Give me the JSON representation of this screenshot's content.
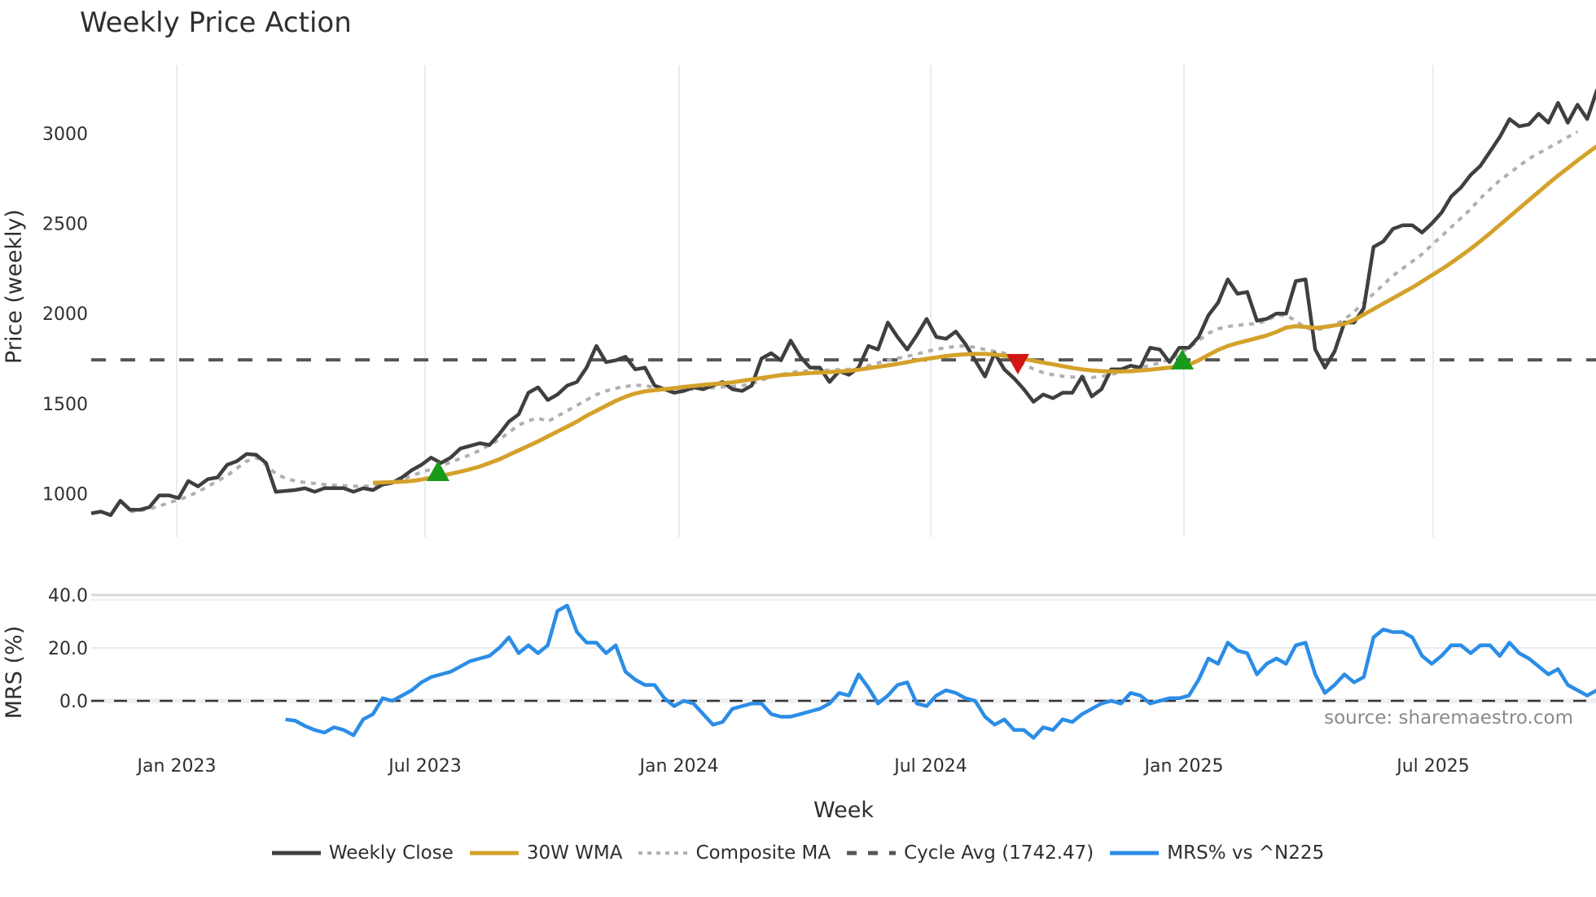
{
  "title": "Weekly Price Action",
  "source_note": "source: sharemaestro.com",
  "axes": {
    "price_ylabel": "Price (weekly)",
    "mrs_ylabel": "MRS (%)",
    "xlabel": "Week",
    "price_ticks": [
      "1000",
      "1500",
      "2000",
      "2500",
      "3000"
    ],
    "mrs_ticks": [
      "0.0",
      "20.0",
      "40.0"
    ],
    "x_ticks": [
      "Jan 2023",
      "Jul 2023",
      "Jan 2024",
      "Jul 2024",
      "Jan 2025",
      "Jul 2025"
    ]
  },
  "legend": [
    {
      "label": "Weekly Close",
      "color": "#3f3f3f",
      "style": "solid"
    },
    {
      "label": "30W WMA",
      "color": "#d4a12a",
      "style": "solid"
    },
    {
      "label": "Composite MA",
      "color": "#b0b0b0",
      "style": "dotted"
    },
    {
      "label": "Cycle Avg (1742.47)",
      "color": "#555555",
      "style": "dashed"
    },
    {
      "label": "MRS% vs ^N225",
      "color": "#2b8de6",
      "style": "solid"
    }
  ],
  "colors": {
    "close": "#3f3f3f",
    "wma": "#d4a12a",
    "composite": "#b0b0b0",
    "cycle": "#555555",
    "mrs": "#2b8de6",
    "buy_marker": "#1a9a1a",
    "sell_marker": "#d01515",
    "grid": "#e8ecf3"
  },
  "chart_data": [
    {
      "type": "line",
      "title": "Weekly Price Action",
      "xlabel": "Week",
      "ylabel": "Price (weekly)",
      "ylim": [
        850,
        3300
      ],
      "x_tick_labels": [
        "Jan 2023",
        "Jul 2023",
        "Jan 2024",
        "Jul 2024",
        "Jan 2025",
        "Jul 2025"
      ],
      "x_start": "2022-11",
      "x_end": "2025-11",
      "grid": true,
      "legend_position": "bottom",
      "hline": {
        "name": "Cycle Avg (1742.47)",
        "value": 1742.47
      },
      "series": [
        {
          "name": "Weekly Close",
          "values": [
            890,
            900,
            880,
            960,
            910,
            910,
            925,
            990,
            990,
            975,
            1070,
            1040,
            1080,
            1090,
            1160,
            1180,
            1220,
            1215,
            1170,
            1010,
            1015,
            1020,
            1030,
            1010,
            1030,
            1030,
            1030,
            1010,
            1030,
            1020,
            1050,
            1060,
            1090,
            1130,
            1160,
            1200,
            1170,
            1200,
            1250,
            1265,
            1280,
            1270,
            1330,
            1400,
            1440,
            1560,
            1590,
            1520,
            1550,
            1600,
            1620,
            1700,
            1820,
            1730,
            1740,
            1760,
            1690,
            1700,
            1600,
            1580,
            1560,
            1570,
            1590,
            1580,
            1600,
            1620,
            1580,
            1570,
            1600,
            1750,
            1780,
            1740,
            1850,
            1760,
            1700,
            1700,
            1620,
            1680,
            1660,
            1700,
            1820,
            1800,
            1950,
            1870,
            1800,
            1880,
            1970,
            1870,
            1860,
            1900,
            1830,
            1740,
            1650,
            1780,
            1690,
            1640,
            1580,
            1510,
            1550,
            1530,
            1560,
            1560,
            1650,
            1540,
            1580,
            1690,
            1690,
            1710,
            1700,
            1810,
            1800,
            1730,
            1810,
            1810,
            1870,
            1990,
            2060,
            2190,
            2110,
            2120,
            1960,
            1970,
            2000,
            2000,
            2180,
            2190,
            1800,
            1700,
            1790,
            1950,
            1950,
            2030,
            2370,
            2400,
            2470,
            2490,
            2490,
            2450,
            2500,
            2560,
            2650,
            2700,
            2770,
            2820,
            2900,
            2980,
            3080,
            3040,
            3050,
            3110,
            3060,
            3170,
            3060,
            3160,
            3080,
            3240,
            3220
          ]
        },
        {
          "name": "30W WMA",
          "start_index": 29,
          "values": [
            1060,
            1062,
            1064,
            1066,
            1070,
            1078,
            1088,
            1098,
            1110,
            1122,
            1135,
            1150,
            1170,
            1190,
            1215,
            1240,
            1265,
            1290,
            1318,
            1345,
            1372,
            1400,
            1432,
            1460,
            1488,
            1515,
            1538,
            1556,
            1568,
            1574,
            1580,
            1586,
            1592,
            1598,
            1604,
            1608,
            1612,
            1618,
            1626,
            1634,
            1642,
            1650,
            1658,
            1662,
            1666,
            1670,
            1672,
            1675,
            1678,
            1682,
            1688,
            1696,
            1704,
            1712,
            1720,
            1730,
            1740,
            1748,
            1756,
            1764,
            1770,
            1774,
            1776,
            1776,
            1772,
            1766,
            1758,
            1748,
            1738,
            1728,
            1718,
            1708,
            1698,
            1690,
            1684,
            1680,
            1678,
            1678,
            1680,
            1684,
            1688,
            1694,
            1700,
            1708,
            1716,
            1740,
            1770,
            1798,
            1820,
            1836,
            1850,
            1864,
            1878,
            1898,
            1922,
            1930,
            1926,
            1920,
            1926,
            1934,
            1942,
            1965,
            1995,
            2025,
            2055,
            2085,
            2115,
            2145,
            2178,
            2212,
            2246,
            2282,
            2320,
            2360,
            2402,
            2446,
            2492,
            2538,
            2584,
            2630,
            2676,
            2722,
            2766,
            2808,
            2850,
            2890,
            2930
          ]
        },
        {
          "name": "Composite MA",
          "values": [
            null,
            null,
            null,
            null,
            900,
            905,
            915,
            930,
            950,
            965,
            985,
            1010,
            1040,
            1070,
            1100,
            1140,
            1180,
            1200,
            1160,
            1110,
            1085,
            1070,
            1062,
            1056,
            1050,
            1046,
            1044,
            1042,
            1040,
            1045,
            1055,
            1065,
            1080,
            1100,
            1118,
            1135,
            1155,
            1175,
            1195,
            1215,
            1240,
            1270,
            1300,
            1340,
            1380,
            1405,
            1420,
            1400,
            1430,
            1460,
            1490,
            1520,
            1550,
            1570,
            1585,
            1595,
            1602,
            1600,
            1590,
            1582,
            1578,
            1578,
            1580,
            1582,
            1588,
            1592,
            1596,
            1600,
            1610,
            1630,
            1648,
            1660,
            1672,
            1680,
            1682,
            1684,
            1686,
            1688,
            1690,
            1698,
            1710,
            1725,
            1740,
            1752,
            1762,
            1775,
            1790,
            1802,
            1810,
            1818,
            1820,
            1812,
            1800,
            1790,
            1780,
            1748,
            1718,
            1692,
            1672,
            1660,
            1652,
            1648,
            1646,
            1645,
            1650,
            1662,
            1675,
            1688,
            1700,
            1712,
            1726,
            1745,
            1775,
            1810,
            1850,
            1890,
            1915,
            1928,
            1935,
            1940,
            1945,
            1960,
            1990,
            1990,
            1960,
            1920,
            1910,
            1918,
            1936,
            1968,
            2010,
            2060,
            2110,
            2160,
            2210,
            2250,
            2290,
            2330,
            2380,
            2430,
            2480,
            2530,
            2580,
            2640,
            2690,
            2740,
            2780,
            2820,
            2860,
            2890,
            2920,
            2950,
            2980,
            3010
          ]
        },
        {
          "name": "Cycle Avg (1742.47)",
          "values": [
            1742.47
          ]
        }
      ],
      "markers": [
        {
          "type": "buy",
          "shape": "triangle-up",
          "color": "#1a9a1a",
          "x_approx": "Jul 2023",
          "y": 1120
        },
        {
          "type": "sell",
          "shape": "triangle-down",
          "color": "#d01515",
          "x_approx": "Oct 2024",
          "y": 1725
        },
        {
          "type": "buy",
          "shape": "triangle-up",
          "color": "#1a9a1a",
          "x_approx": "Dec 2024",
          "y": 1740
        }
      ]
    },
    {
      "type": "line",
      "title": "",
      "ylabel": "MRS (%)",
      "xlabel": "Week",
      "ylim": [
        -17,
        42
      ],
      "tick_labels": [
        "0.0",
        "20.0",
        "40.0"
      ],
      "grid": true,
      "hline": {
        "value": 0.0,
        "style": "dashed"
      },
      "series": [
        {
          "name": "MRS% vs ^N225",
          "start_index": 20,
          "values": [
            -7,
            -7.5,
            -9.5,
            -11,
            -12,
            -10,
            -11,
            -13,
            -7,
            -5,
            1,
            0,
            2,
            4,
            7,
            9,
            10,
            11,
            13,
            15,
            16,
            17,
            20,
            24,
            18,
            21,
            18,
            21,
            34,
            36,
            26,
            22,
            22,
            18,
            21,
            11,
            8,
            6,
            6,
            1,
            -2,
            0,
            -1,
            -5,
            -9,
            -8,
            -3,
            -2,
            -1,
            -1,
            -5,
            -6,
            -6,
            -5,
            -4,
            -3,
            -1,
            3,
            2,
            10,
            5,
            -1,
            2,
            6,
            7,
            -1,
            -2,
            2,
            4,
            3,
            1,
            0,
            -6,
            -9,
            -7,
            -11,
            -11,
            -14,
            -10,
            -11,
            -7,
            -8,
            -5,
            -3,
            -1,
            0,
            -1,
            3,
            2,
            -1,
            0,
            1,
            1,
            2,
            8,
            16,
            14,
            22,
            19,
            18,
            10,
            14,
            16,
            14,
            21,
            22,
            10,
            3,
            6,
            10,
            7,
            9,
            24,
            27,
            26,
            26,
            24,
            17,
            14,
            17,
            21,
            21,
            18,
            21,
            21,
            17,
            22,
            18,
            16,
            13,
            10,
            12,
            6,
            4,
            2,
            4,
            0
          ]
        }
      ]
    }
  ]
}
